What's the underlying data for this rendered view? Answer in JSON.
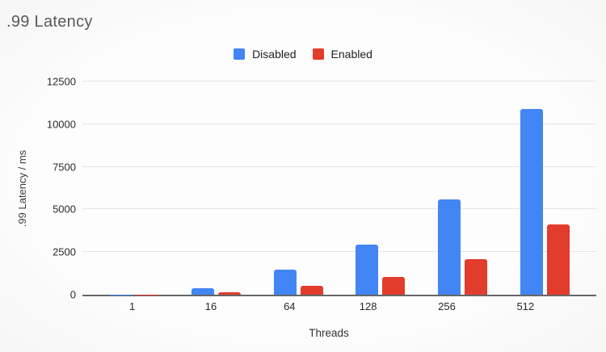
{
  "chart_data": {
    "type": "bar",
    "title": ".99 Latency",
    "xlabel": "Threads",
    "ylabel": ".99 Latency / ms",
    "categories": [
      "1",
      "16",
      "64",
      "128",
      "256",
      "512"
    ],
    "series": [
      {
        "name": "Disabled",
        "color": "#4285F4",
        "values": [
          10,
          400,
          1450,
          2950,
          5600,
          10900
        ]
      },
      {
        "name": "Enabled",
        "color": "#E23C2D",
        "values": [
          5,
          130,
          520,
          1050,
          2100,
          4100
        ]
      }
    ],
    "ylim": [
      0,
      12500
    ],
    "yticks": [
      0,
      2500,
      5000,
      7500,
      10000,
      12500
    ],
    "grid": true,
    "legend_position": "top-center"
  },
  "colors": {
    "background": "#FCFCFC",
    "title_text": "#58595B",
    "gridline": "#E4E4E4",
    "baseline": "#666666"
  }
}
